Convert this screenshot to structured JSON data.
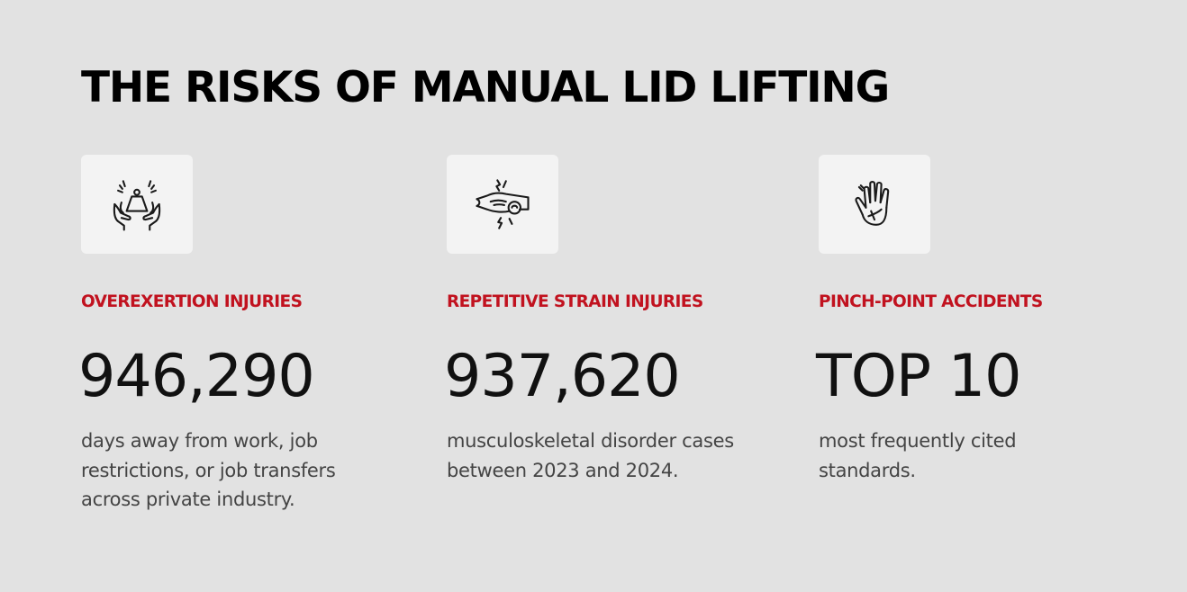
{
  "title": "THE RISKS OF MANUAL LID LIFTING",
  "cards": [
    {
      "icon": "weight-in-hands-icon",
      "label": "OVEREXERTION INJURIES",
      "stat": "946,290",
      "description": "days away from work, job restrictions, or job transfers across private industry."
    },
    {
      "icon": "wrist-strain-icon",
      "label": "REPETITIVE STRAIN INJURIES",
      "stat": "937,620",
      "description": "musculoskeletal disorder cases between 2023 and 2024."
    },
    {
      "icon": "injured-hand-icon",
      "label": "PINCH-POINT ACCIDENTS",
      "stat": "TOP 10",
      "description": "most frequently cited standards."
    }
  ],
  "colors": {
    "background": "#e2e2e2",
    "accent": "#c1121f",
    "icon_tile": "#f3f3f3",
    "heading": "#000000",
    "body_text": "#444444"
  }
}
